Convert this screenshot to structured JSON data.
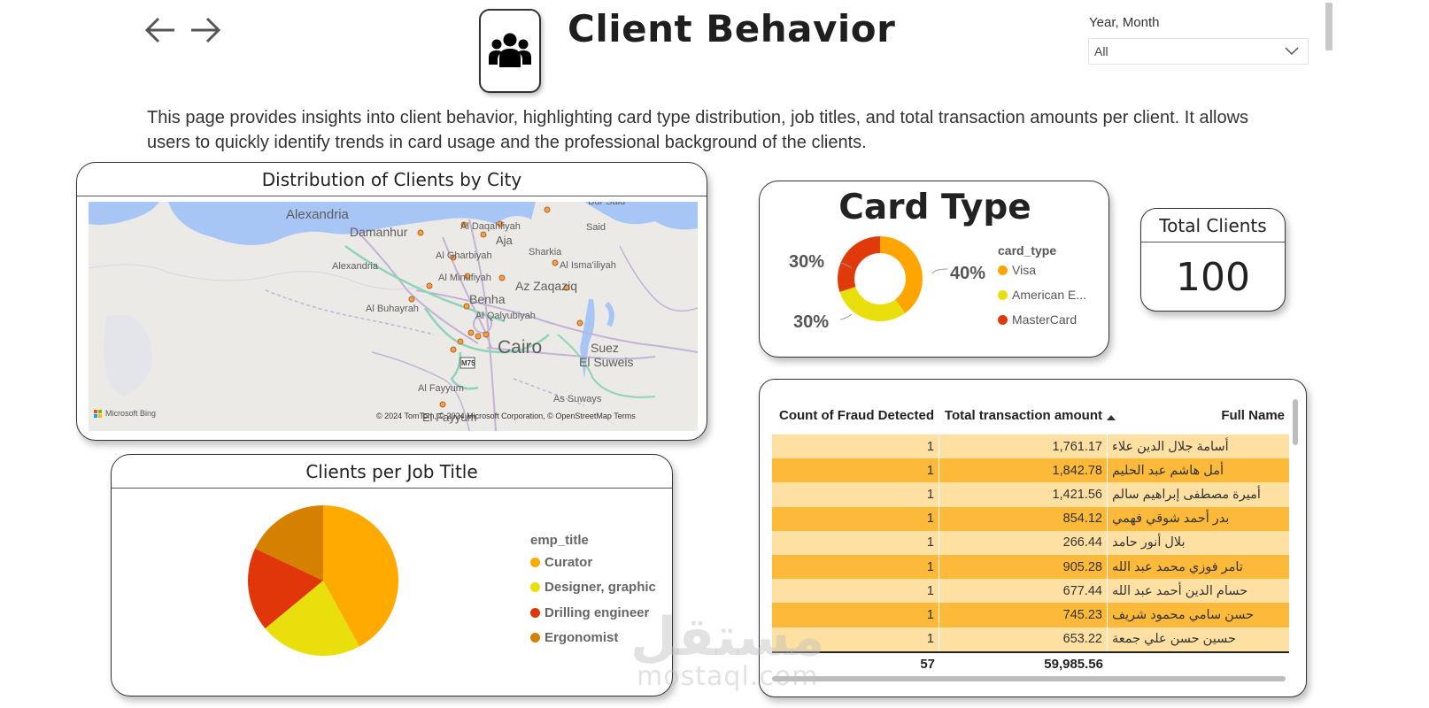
{
  "nav": {
    "back_icon": "arrow-left-icon",
    "forward_icon": "arrow-right-icon"
  },
  "header": {
    "title": "Client Behavior",
    "icon": "users-group-icon"
  },
  "slicer": {
    "label": "Year, Month",
    "value": "All"
  },
  "description": "This page provides insights into client behavior, highlighting card type distribution, job titles, and total transaction amounts per client. It allows users to quickly identify trends in card usage and the professional background of the clients.",
  "map": {
    "title": "Distribution of Clients by City",
    "labels": [
      "Alexandria",
      "Damanhur",
      "Alexandria",
      "Al Buhayrah",
      "Al Daqahliyah",
      "Aja",
      "Sharkia",
      "Al Gharbiyah",
      "Al Minufiyah",
      "Al Isma'iliyah",
      "Az Zaqaziq",
      "Benha",
      "Al Qalyubiyah",
      "Cairo",
      "Suez",
      "El Suweis",
      "Al Fayyum",
      "As Suways",
      "El Fayyum",
      "Bur Said",
      "Port Said"
    ],
    "attribution": "© 2024 TomTom, © 2024 Microsoft Corporation, © OpenStreetMap  Terms",
    "logo": "Microsoft Bing",
    "road_label": "M75"
  },
  "card_type": {
    "title": "Card Type",
    "legend_title": "card_type",
    "slices": [
      {
        "label": "Visa",
        "percent": 40,
        "color": "#FFA500"
      },
      {
        "label": "American E...",
        "percent": 30,
        "color": "#E8DF0C"
      },
      {
        "label": "MasterCard",
        "percent": 30,
        "color": "#E03A0B"
      }
    ],
    "data_labels": [
      "40%",
      "30%",
      "30%"
    ]
  },
  "total_clients": {
    "title": "Total Clients",
    "value": "100"
  },
  "job_title": {
    "title": "Clients per Job Title",
    "legend_title": "emp_title",
    "slices": [
      {
        "label": "Curator",
        "value": 42,
        "color": "#FFAA00"
      },
      {
        "label": "Designer, graphic",
        "value": 22,
        "color": "#E8DF0C"
      },
      {
        "label": "Drilling engineer",
        "value": 18,
        "color": "#E0360A"
      },
      {
        "label": "Ergonomist",
        "value": 18,
        "color": "#D68000"
      }
    ]
  },
  "table": {
    "columns": [
      "Count of Fraud Detected",
      "Total transaction amount",
      "Full Name"
    ],
    "rows": [
      [
        "1",
        "1,761.17",
        "أسامة جلال الدين علاء"
      ],
      [
        "1",
        "1,842.78",
        "أمل هاشم عبد الحليم"
      ],
      [
        "1",
        "1,421.56",
        "أميرة مصطفى إبراهيم سالم"
      ],
      [
        "1",
        "854.12",
        "بدر أحمد شوقي فهمي"
      ],
      [
        "1",
        "266.44",
        "بلال أنور حامد"
      ],
      [
        "1",
        "905.28",
        "تامر فوزي محمد عبد الله"
      ],
      [
        "1",
        "677.44",
        "حسام الدين أحمد عبد الله"
      ],
      [
        "1",
        "745.23",
        "حسن سامي محمود شريف"
      ],
      [
        "1",
        "653.22",
        "حسين حسن علي جمعة"
      ]
    ],
    "totals": [
      "57",
      "59,985.56",
      ""
    ],
    "row_colors": [
      "#FFE0A3",
      "#FDBA3A"
    ]
  },
  "watermark": {
    "arabic": "مستقل",
    "latin": "mostaql.com"
  },
  "chart_data": [
    {
      "type": "pie",
      "title": "Card Type",
      "categories": [
        "Visa",
        "American E...",
        "MasterCard"
      ],
      "values": [
        40,
        30,
        30
      ],
      "legend": "right"
    },
    {
      "type": "pie",
      "title": "Clients per Job Title",
      "categories": [
        "Curator",
        "Designer, graphic",
        "Drilling engineer",
        "Ergonomist"
      ],
      "values": [
        42,
        22,
        18,
        18
      ],
      "legend": "right"
    }
  ]
}
